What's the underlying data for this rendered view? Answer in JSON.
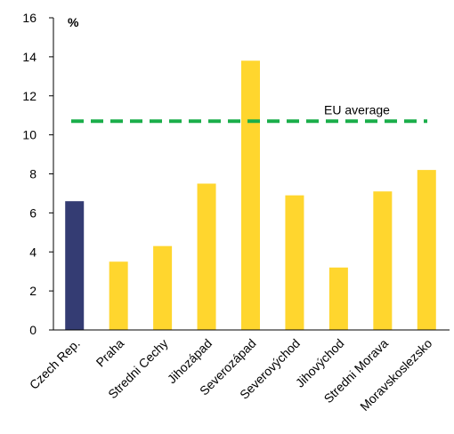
{
  "chart_data": {
    "type": "bar",
    "unit_label": "%",
    "categories": [
      "Czech Rep.",
      "Praha",
      "Stredni Cechy",
      "Jihozápad",
      "Severozápad",
      "Severovýchod",
      "Jihovýchod",
      "Stredni Morava",
      "Moravskoslezsko"
    ],
    "values": [
      6.6,
      3.5,
      4.3,
      7.5,
      13.8,
      6.9,
      3.2,
      7.1,
      8.2
    ],
    "colors": [
      "#343C73",
      "#FFD62E",
      "#FFD62E",
      "#FFD62E",
      "#FFD62E",
      "#FFD62E",
      "#FFD62E",
      "#FFD62E",
      "#FFD62E"
    ],
    "ylim": [
      0,
      16
    ],
    "yticks": [
      0,
      2,
      4,
      6,
      8,
      10,
      12,
      14,
      16
    ],
    "reference_line": {
      "label": "EU average",
      "value": 10.7,
      "color": "#1AAE4A",
      "style": "dashed"
    },
    "grid": false,
    "legend": "none"
  }
}
